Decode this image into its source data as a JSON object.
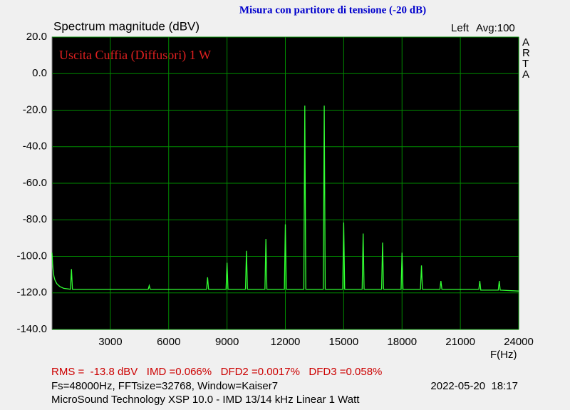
{
  "chart_data": {
    "type": "line",
    "title": "Misura con partitore di tensione (-20 dB)",
    "y_label": "Spectrum magnitude (dBV)",
    "x_label": "F(Hz)",
    "channel": "Left",
    "averaging": "Avg:100",
    "brand": "ARTA",
    "annotation": "Uscita Cuffia (Diffusori) 1 W",
    "color": "#33ff33",
    "grid": true,
    "x": [
      0,
      30,
      60,
      100,
      150,
      250,
      400,
      600,
      950,
      1000,
      1050,
      2000,
      3000,
      4000,
      4950,
      5000,
      5050,
      6000,
      7000,
      7950,
      8000,
      8050,
      8950,
      9000,
      9050,
      9950,
      10000,
      10050,
      10950,
      11000,
      11050,
      11950,
      12000,
      12050,
      12950,
      13000,
      13050,
      13950,
      14000,
      14050,
      14950,
      15000,
      15050,
      15950,
      16000,
      16050,
      16950,
      17000,
      17050,
      17950,
      18000,
      18050,
      18950,
      19000,
      19050,
      19950,
      20000,
      20050,
      21000,
      21950,
      22000,
      22050,
      22950,
      23000,
      23050,
      24000
    ],
    "values": [
      -98,
      -104,
      -108,
      -111,
      -113,
      -115,
      -116.5,
      -117.5,
      -118,
      -107,
      -118,
      -118,
      -118,
      -118,
      -118,
      -116,
      -118,
      -118,
      -118,
      -118,
      -111.5,
      -118,
      -118,
      -103.5,
      -118,
      -118,
      -97,
      -118,
      -118,
      -90.5,
      -118,
      -118,
      -82.5,
      -118,
      -118,
      -17.5,
      -118,
      -118,
      -17.5,
      -118,
      -118,
      -81.5,
      -118,
      -118,
      -87.5,
      -118,
      -118,
      -92.5,
      -118,
      -118,
      -98,
      -118,
      -118,
      -105,
      -118,
      -118,
      -113.5,
      -118,
      -118,
      -118,
      -113.5,
      -118.5,
      -118.5,
      -113.5,
      -118.5,
      -119
    ],
    "xlim": [
      0,
      24000
    ],
    "xticks": [
      3000,
      6000,
      9000,
      12000,
      15000,
      18000,
      21000,
      24000
    ],
    "ylim": [
      -140,
      20
    ],
    "yticks": [
      {
        "value": 20,
        "label": "20.0"
      },
      {
        "value": 0,
        "label": "0.0"
      },
      {
        "value": -20,
        "label": "-20.0"
      },
      {
        "value": -40,
        "label": "-40.0"
      },
      {
        "value": -60,
        "label": "-60.0"
      },
      {
        "value": -80,
        "label": "-80.0"
      },
      {
        "value": -100,
        "label": "-100.0"
      },
      {
        "value": -120,
        "label": "-120.0"
      },
      {
        "value": -140,
        "label": "-140.0"
      }
    ]
  },
  "footer": {
    "measurements": "RMS =  -13.8 dBV   IMD =0.066%   DFD2 =0.0017%   DFD3 =0.058%",
    "settings": "Fs=48000Hz, FFTsize=32768, Window=Kaiser7",
    "timestamp": "2022-05-20  18:17",
    "source": "MicroSound Technology XSP 10.0 - IMD 13/14 kHz Linear 1 Watt"
  }
}
